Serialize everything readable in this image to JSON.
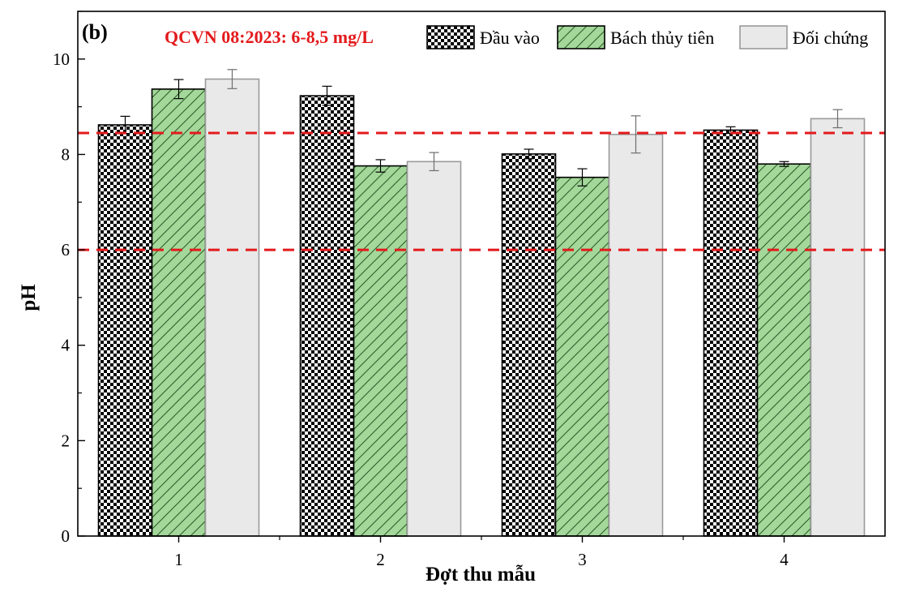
{
  "panel_label": "(b)",
  "colors": {
    "threshold": "#e31a1c",
    "green": "#a3d89a",
    "light": "#e9e9e9",
    "light_stroke": "#9a9a9a"
  },
  "chart_data": {
    "type": "bar",
    "title": "",
    "xlabel": "Đợt thu mẫu",
    "ylabel": "pH",
    "categories": [
      "1",
      "2",
      "3",
      "4"
    ],
    "ylim": [
      0,
      11
    ],
    "yticks": [
      0,
      2,
      4,
      6,
      8,
      10
    ],
    "series": [
      {
        "name": "Đầu vào",
        "pattern": "checker",
        "values": [
          8.62,
          9.23,
          8.01,
          8.51
        ],
        "errors": [
          0.18,
          0.2,
          0.1,
          0.07
        ]
      },
      {
        "name": "Bách thủy tiên",
        "pattern": "hatch",
        "values": [
          9.37,
          7.76,
          7.52,
          7.8
        ],
        "errors": [
          0.2,
          0.13,
          0.18,
          0.05
        ]
      },
      {
        "name": "Đối chứng",
        "pattern": "solid",
        "values": [
          9.58,
          7.85,
          8.42,
          8.75
        ],
        "errors": [
          0.2,
          0.19,
          0.39,
          0.19
        ]
      }
    ],
    "reference_lines": [
      8.45,
      6.0
    ],
    "annotation": "QCVN 08:2023: 6-8,5 mg/L",
    "legend_position": "top-right"
  }
}
